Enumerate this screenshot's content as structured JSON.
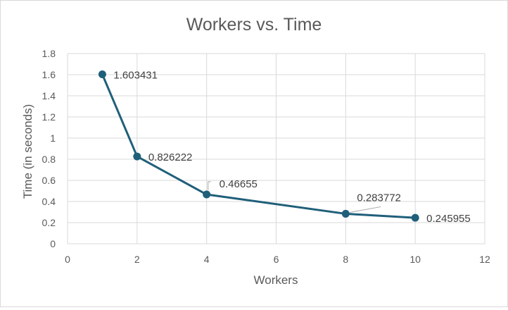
{
  "chart_data": {
    "type": "line",
    "title": "Workers vs. Time",
    "xlabel": "Workers",
    "ylabel": "Time (in seconds)",
    "xlim": [
      0,
      12
    ],
    "ylim": [
      0,
      1.8
    ],
    "x_ticks": [
      "0",
      "2",
      "4",
      "6",
      "8",
      "10",
      "12"
    ],
    "y_ticks": [
      "0",
      "0.2",
      "0.4",
      "0.6",
      "0.8",
      "1",
      "1.2",
      "1.4",
      "1.6",
      "1.8"
    ],
    "grid": true,
    "legend": "none",
    "series": [
      {
        "x": [
          1,
          2,
          4,
          8,
          10
        ],
        "y": [
          1.603431,
          0.826222,
          0.46655,
          0.283772,
          0.245955
        ],
        "labels": [
          "1.603431",
          "0.826222",
          "0.46655",
          "0.283772",
          "0.245955"
        ],
        "color": "#1f5f7a"
      }
    ]
  }
}
